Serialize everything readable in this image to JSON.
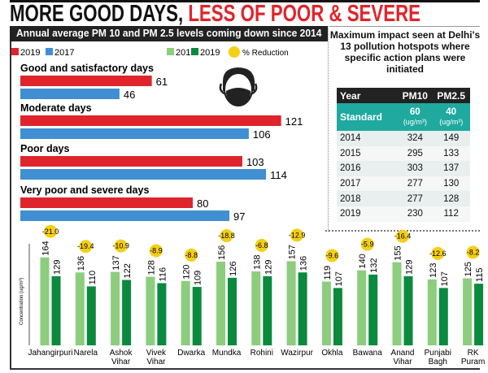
{
  "headline": {
    "part1": "MORE GOOD DAYS, ",
    "part2": "LESS OF POOR & SEVERE"
  },
  "colors": {
    "red_2019": "#e0242b",
    "blue_2017": "#3f8fd2",
    "green_2018": "#8ccd7e",
    "green_2019": "#0a8a3e",
    "reduction_yellow": "#f5cf16",
    "teal": "#1fa99f"
  },
  "chart_data": [
    {
      "type": "bar",
      "orientation": "horizontal",
      "title": "Annual average PM 10 and PM 2.5 levels coming down since 2014",
      "categories": [
        "Good and satisfactory days",
        "Moderate days",
        "Poor days",
        "Very poor  and severe days"
      ],
      "series": [
        {
          "name": "2019",
          "color": "#e0242b",
          "values": [
            61,
            121,
            103,
            80
          ]
        },
        {
          "name": "2017",
          "color": "#3f8fd2",
          "values": [
            46,
            106,
            114,
            97
          ]
        }
      ],
      "icon": "face-mask-icon"
    },
    {
      "type": "bar",
      "ylabel": "Concentration (ug/m³)",
      "categories": [
        "Jahangirpuri",
        "Narela",
        "Ashok Vihar",
        "Vivek Vihar",
        "Dwarka",
        "Mundka",
        "Rohini",
        "Wazirpur",
        "Okhla",
        "Bawana",
        "Anand Vihar",
        "Punjabi Bagh",
        "RK Puram"
      ],
      "series": [
        {
          "name": "2018",
          "color": "#8ccd7e",
          "values": [
            164,
            136,
            137,
            128,
            120,
            156,
            138,
            157,
            119,
            140,
            155,
            123,
            125
          ]
        },
        {
          "name": "2019",
          "color": "#0a8a3e",
          "values": [
            129,
            110,
            122,
            116,
            109,
            126,
            129,
            136,
            107,
            132,
            129,
            107,
            115
          ]
        }
      ],
      "reduction_label": "% Reduction",
      "reduction": [
        "-21.0",
        "-19.4",
        "-10.9",
        "-8.9",
        "-8.8",
        "-18.8",
        "-6.8",
        "-12.9",
        "-9.6",
        "-5.9",
        "-16.4",
        "-12.6",
        "-8.2"
      ]
    }
  ],
  "table": {
    "title": "Maximum impact seen at Delhi's 13 pollution hotspots where specific action plans were initiated",
    "headers": [
      "Year",
      "PM10",
      "PM2.5"
    ],
    "standard": {
      "label": "Standard",
      "pm10": "60",
      "pm25": "40",
      "unit": "(ug/m³)"
    },
    "rows": [
      [
        "2014",
        "324",
        "149"
      ],
      [
        "2015",
        "295",
        "133"
      ],
      [
        "2016",
        "303",
        "137"
      ],
      [
        "2017",
        "277",
        "130"
      ],
      [
        "2018",
        "277",
        "128"
      ],
      [
        "2019",
        "230",
        "112"
      ]
    ]
  }
}
